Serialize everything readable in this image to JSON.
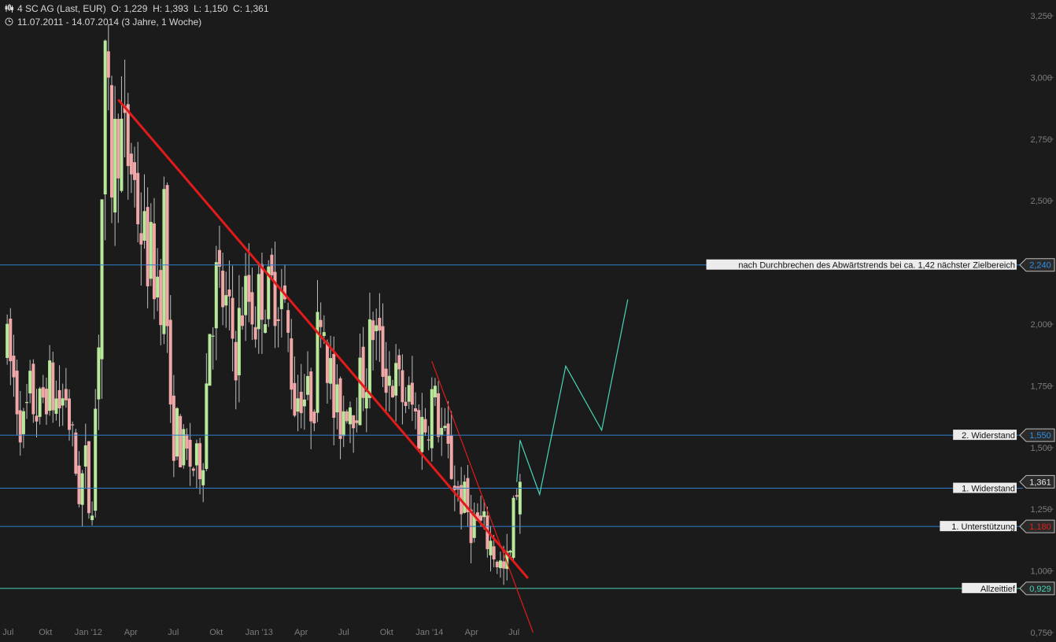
{
  "header": {
    "instrument": "4 SC AG (Last, EUR)",
    "ohlc": "O: 1,229  H: 1,393  L: 1,150  C: 1,361",
    "range": "11.07.2011 - 14.07.2014 (3 Jahre, 1 Woche)"
  },
  "colors": {
    "background": "#1b1b1b",
    "up_candle": "#b8e89a",
    "down_candle": "#f0a7a7",
    "trendline": "#e21a1a",
    "support_resistance": "#2f7fd0",
    "forecast": "#49d6b8",
    "axis_text": "#7c7c7c"
  },
  "chart_data": {
    "type": "candlestick",
    "interval": "weekly",
    "currency": "EUR",
    "y_axis": {
      "min": 0.75,
      "max": 3.25,
      "ticks": [
        "3,250",
        "3,000",
        "2,750",
        "2,500",
        "2,250",
        "2,000",
        "1,750",
        "1,500",
        "1,250",
        "1,000",
        "0,750"
      ],
      "tick_values": [
        3.25,
        3.0,
        2.75,
        2.5,
        2.25,
        2.0,
        1.75,
        1.5,
        1.25,
        1.0,
        0.75
      ],
      "position": "right"
    },
    "x_axis": {
      "ticks": [
        {
          "label": "Jul",
          "date": "2011-07"
        },
        {
          "label": "Okt",
          "date": "2011-10"
        },
        {
          "label": "Jan '12",
          "date": "2012-01"
        },
        {
          "label": "Apr",
          "date": "2012-04"
        },
        {
          "label": "Jul",
          "date": "2012-07"
        },
        {
          "label": "Okt",
          "date": "2012-10"
        },
        {
          "label": "Jan '13",
          "date": "2013-01"
        },
        {
          "label": "Apr",
          "date": "2013-04"
        },
        {
          "label": "Jul",
          "date": "2013-07"
        },
        {
          "label": "Okt",
          "date": "2013-10"
        },
        {
          "label": "Jan '14",
          "date": "2014-01"
        },
        {
          "label": "Apr",
          "date": "2014-04"
        },
        {
          "label": "Jul",
          "date": "2014-07"
        }
      ]
    },
    "series_path": [
      [
        "2011-07-11",
        1.91
      ],
      [
        "2011-07-25",
        1.84
      ],
      [
        "2011-08-22",
        1.57
      ],
      [
        "2011-09-05",
        1.7
      ],
      [
        "2011-09-26",
        1.64
      ],
      [
        "2011-10-10",
        1.76
      ],
      [
        "2011-10-24",
        1.71
      ],
      [
        "2011-11-07",
        1.67
      ],
      [
        "2011-11-21",
        1.72
      ],
      [
        "2011-12-05",
        1.5
      ],
      [
        "2011-12-19",
        1.33
      ],
      [
        "2012-01-02",
        1.42
      ],
      [
        "2012-01-09",
        1.28
      ],
      [
        "2012-01-16",
        1.33
      ],
      [
        "2012-01-30",
        1.99
      ],
      [
        "2012-02-06",
        2.51
      ],
      [
        "2012-02-13",
        2.95
      ],
      [
        "2012-02-27",
        2.63
      ],
      [
        "2012-03-12",
        2.8
      ],
      [
        "2012-03-26",
        2.7
      ],
      [
        "2012-04-09",
        2.65
      ],
      [
        "2012-04-23",
        2.47
      ],
      [
        "2012-05-07",
        2.32
      ],
      [
        "2012-05-28",
        2.22
      ],
      [
        "2012-06-11",
        2.16
      ],
      [
        "2012-06-18",
        2.46
      ],
      [
        "2012-07-02",
        1.57
      ],
      [
        "2012-07-16",
        1.56
      ],
      [
        "2012-07-30",
        1.47
      ],
      [
        "2012-08-13",
        1.44
      ],
      [
        "2012-08-27",
        1.41
      ],
      [
        "2012-09-10",
        1.51
      ],
      [
        "2012-09-24",
        2.02
      ],
      [
        "2012-10-08",
        2.16
      ],
      [
        "2012-10-22",
        2.1
      ],
      [
        "2012-11-05",
        1.99
      ],
      [
        "2012-11-19",
        1.9
      ],
      [
        "2012-12-03",
        2.08
      ],
      [
        "2012-12-17",
        2.11
      ],
      [
        "2012-12-31",
        2.04
      ],
      [
        "2013-01-14",
        2.15
      ],
      [
        "2013-01-28",
        2.1
      ],
      [
        "2013-02-11",
        2.16
      ],
      [
        "2013-02-25",
        2.12
      ],
      [
        "2013-03-11",
        1.93
      ],
      [
        "2013-03-25",
        1.7
      ],
      [
        "2013-04-08",
        1.75
      ],
      [
        "2013-04-22",
        1.68
      ],
      [
        "2013-05-06",
        1.72
      ],
      [
        "2013-05-20",
        2.15
      ],
      [
        "2013-06-03",
        1.9
      ],
      [
        "2013-06-17",
        1.65
      ],
      [
        "2013-07-01",
        1.62
      ],
      [
        "2013-07-15",
        1.71
      ],
      [
        "2013-07-29",
        1.7
      ],
      [
        "2013-08-12",
        1.75
      ],
      [
        "2013-08-26",
        1.82
      ],
      [
        "2013-09-09",
        2.0
      ],
      [
        "2013-09-23",
        1.88
      ],
      [
        "2013-10-07",
        1.82
      ],
      [
        "2013-10-21",
        1.78
      ],
      [
        "2013-11-04",
        1.73
      ],
      [
        "2013-11-18",
        1.7
      ],
      [
        "2013-12-02",
        1.66
      ],
      [
        "2013-12-16",
        1.58
      ],
      [
        "2013-12-30",
        1.6
      ],
      [
        "2014-01-13",
        1.7
      ],
      [
        "2014-01-27",
        1.62
      ],
      [
        "2014-02-10",
        1.5
      ],
      [
        "2014-02-24",
        1.42
      ],
      [
        "2014-03-10",
        1.32
      ],
      [
        "2014-03-24",
        1.27
      ],
      [
        "2014-04-07",
        1.2
      ],
      [
        "2014-04-21",
        1.19
      ],
      [
        "2014-05-05",
        1.16
      ],
      [
        "2014-05-19",
        1.11
      ],
      [
        "2014-06-02",
        1.05
      ],
      [
        "2014-06-16",
        0.99
      ],
      [
        "2014-06-30",
        1.06
      ],
      [
        "2014-07-07",
        1.229
      ],
      [
        "2014-07-14",
        1.361
      ]
    ],
    "last_candle": {
      "date": "2014-07-14",
      "open": 1.229,
      "high": 1.393,
      "low": 1.15,
      "close": 1.361
    },
    "horizontal_levels": [
      {
        "value": 2.24,
        "label": "nach Durchbrechen des Abwärtstrends bei ca. 1,42 nächster Zielbereich",
        "price_label": "2,240",
        "tag_color": "#2f8ee0"
      },
      {
        "value": 1.55,
        "label": "2. Widerstand",
        "price_label": "1,550",
        "tag_color": "#2f8ee0"
      },
      {
        "value": 1.361,
        "line_value": 1.335,
        "label": "1. Widerstand",
        "price_label": "1,361",
        "tag_color": "#e6e6e6"
      },
      {
        "value": 1.18,
        "label": "1. Unterstützung",
        "price_label": "1,180",
        "tag_color": "#e02020"
      },
      {
        "value": 0.929,
        "label": "Allzeittief",
        "price_label": "0,929",
        "tag_color": "#49d6b8"
      }
    ],
    "trendlines": [
      {
        "name": "main downtrend",
        "from": [
          "2012-03-05",
          2.91
        ],
        "to": [
          "2014-07-31",
          0.97
        ],
        "width": "thick"
      },
      {
        "name": "steep downtrend",
        "from": [
          "2014-01-06",
          1.85
        ],
        "to": [
          "2014-08-11",
          0.75
        ],
        "width": "thin"
      }
    ],
    "forecast_path": [
      [
        "2014-07-07",
        1.36
      ],
      [
        "2014-07-14",
        1.53
      ],
      [
        "2014-08-25",
        1.31
      ],
      [
        "2014-10-20",
        1.83
      ],
      [
        "2015-01-05",
        1.57
      ],
      [
        "2015-03-02",
        2.1
      ]
    ]
  }
}
